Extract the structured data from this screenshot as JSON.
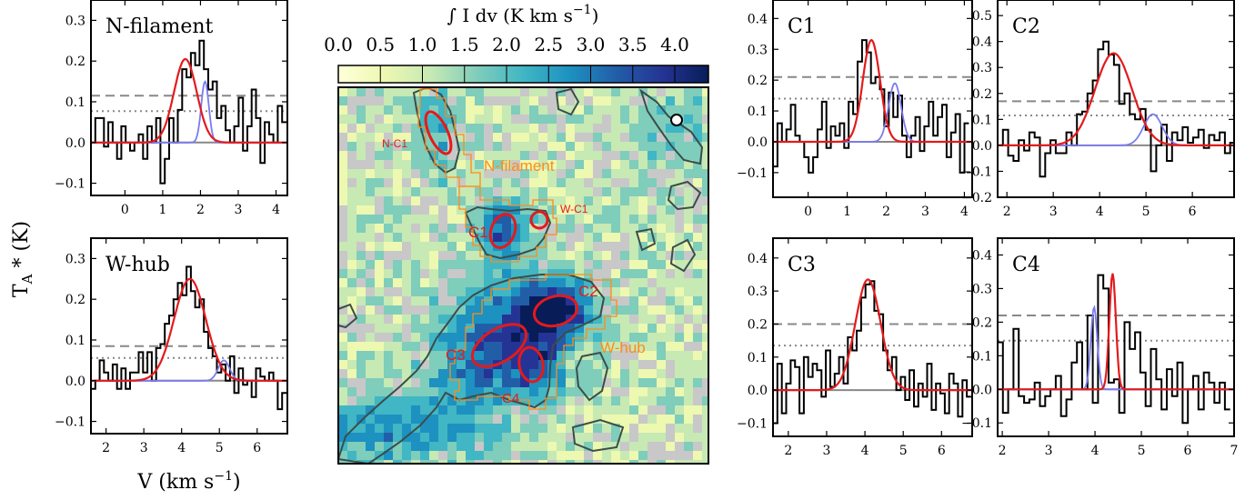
{
  "colors": {
    "spectrum": "#000000",
    "fit_main": "#e41a1c",
    "fit_secondary": "#7b7bf0",
    "baseline_zero": "#888888",
    "noise_3sigma": "#888888",
    "noise_2sigma": "#888888",
    "map_contour": "#3b4d4a",
    "map_mask": "#ff8c1a",
    "core_ellipse": "#e41a1c",
    "blank_pixels": "#c8c8c8"
  },
  "labels": {
    "ylabel": "T$_A$ * (K)",
    "xlabel": "V (km s$^{-1}$)",
    "colorbar_title": "∫ I dv (K km s$^{-1}$)"
  },
  "colorbar": {
    "ticks": [
      "0.0",
      "0.5",
      "1.0",
      "1.5",
      "2.0",
      "2.5",
      "3.0",
      "3.5",
      "4.0"
    ],
    "range": [
      0.0,
      4.4
    ],
    "colormap": "YlGnBu"
  },
  "map": {
    "region_labels": [
      "N-filament",
      "W-hub",
      "W-C1"
    ],
    "core_labels": [
      "N-C1",
      "C1",
      "C2",
      "C3",
      "C4"
    ],
    "beam_marker": "white-circle"
  },
  "chart_data": [
    {
      "type": "line",
      "panel": "N-filament",
      "title": "N-filament",
      "xlim": [
        -0.9,
        4.3
      ],
      "ylim": [
        -0.13,
        0.35
      ],
      "xticks": [
        0,
        1,
        2,
        3,
        4
      ],
      "yticks": [
        -0.1,
        0.0,
        0.1,
        0.2,
        0.3
      ],
      "x0": -0.9,
      "dx": 0.115,
      "values": [
        0.0,
        0.06,
        0.06,
        -0.01,
        0.05,
        0.0,
        -0.04,
        0.04,
        0.0,
        -0.02,
        0.0,
        0.02,
        -0.04,
        0.04,
        0.0,
        0.06,
        -0.1,
        -0.04,
        0.06,
        0.0,
        0.08,
        0.18,
        0.16,
        0.22,
        0.19,
        0.25,
        0.18,
        0.13,
        0.15,
        0.06,
        0.09,
        0.03,
        0.0,
        0.04,
        0.11,
        -0.02,
        0.04,
        0.13,
        0.06,
        -0.05,
        0.05,
        0.02,
        0.0,
        0.09,
        0.05
      ],
      "fit_main": {
        "amp": 0.205,
        "center": 1.6,
        "sigma": 0.3
      },
      "fit_secondary": {
        "amp": 0.15,
        "center": 2.12,
        "sigma": 0.1
      },
      "noise_3sigma": 0.115,
      "noise_2sigma": 0.077
    },
    {
      "type": "line",
      "panel": "W-hub",
      "title": "W-hub",
      "xlim": [
        1.6,
        6.8
      ],
      "ylim": [
        -0.13,
        0.35
      ],
      "xticks": [
        2,
        3,
        4,
        5,
        6
      ],
      "yticks": [
        -0.1,
        0.0,
        0.1,
        0.2,
        0.3
      ],
      "x0": 1.6,
      "dx": 0.115,
      "values": [
        -0.02,
        0.0,
        0.05,
        0.02,
        0.0,
        0.04,
        -0.02,
        0.03,
        -0.02,
        0.02,
        0.02,
        0.07,
        0.02,
        0.07,
        0.0,
        0.08,
        0.09,
        0.14,
        0.16,
        0.2,
        0.24,
        0.21,
        0.28,
        0.22,
        0.18,
        0.2,
        0.12,
        0.08,
        0.06,
        0.02,
        0.04,
        0.0,
        0.06,
        -0.03,
        0.03,
        -0.01,
        0.0,
        -0.04,
        0.03,
        0.01,
        0.0,
        0.02,
        0.0,
        -0.07,
        -0.03
      ],
      "fit_main": {
        "amp": 0.25,
        "center": 4.22,
        "sigma": 0.42
      },
      "fit_secondary": {
        "amp": 0.05,
        "center": 5.12,
        "sigma": 0.15
      },
      "noise_3sigma": 0.085,
      "noise_2sigma": 0.056
    },
    {
      "type": "line",
      "panel": "C1",
      "title": "C1",
      "xlim": [
        -0.9,
        4.2
      ],
      "ylim": [
        -0.18,
        0.46
      ],
      "xticks": [
        0,
        1,
        2,
        3,
        4
      ],
      "yticks": [
        -0.1,
        0.0,
        0.1,
        0.2,
        0.3,
        0.4
      ],
      "x0": -0.9,
      "dx": 0.114,
      "values": [
        -0.08,
        0.06,
        0.0,
        0.04,
        0.12,
        0.02,
        0.0,
        -0.05,
        -0.1,
        -0.05,
        0.04,
        0.13,
        -0.02,
        0.05,
        0.02,
        0.06,
        -0.02,
        0.13,
        0.09,
        0.26,
        0.33,
        0.29,
        0.19,
        0.21,
        0.17,
        0.05,
        0.16,
        0.08,
        0.15,
        0.02,
        -0.05,
        0.02,
        0.08,
        -0.03,
        0.05,
        0.13,
        0.02,
        0.08,
        0.12,
        -0.05,
        0.03,
        0.09,
        -0.1,
        0.06
      ],
      "fit_main": {
        "amp": 0.33,
        "center": 1.62,
        "sigma": 0.22
      },
      "fit_secondary": {
        "amp": 0.19,
        "center": 2.22,
        "sigma": 0.16
      },
      "noise_3sigma": 0.21,
      "noise_2sigma": 0.14
    },
    {
      "type": "line",
      "panel": "C2",
      "title": "C2",
      "xlim": [
        1.8,
        6.9
      ],
      "ylim": [
        -0.2,
        0.56
      ],
      "xticks": [
        2,
        3,
        4,
        5,
        6
      ],
      "yticks": [
        -0.2,
        -0.1,
        0.0,
        0.1,
        0.2,
        0.3,
        0.4,
        0.5
      ],
      "x0": 1.8,
      "dx": 0.114,
      "values": [
        0.0,
        0.06,
        -0.04,
        -0.06,
        0.02,
        -0.02,
        0.05,
        0.03,
        -0.12,
        -0.03,
        0.02,
        -0.03,
        -0.03,
        0.05,
        0.0,
        0.12,
        0.13,
        0.2,
        0.25,
        0.37,
        0.4,
        0.35,
        0.31,
        0.16,
        0.2,
        0.12,
        0.1,
        0.14,
        0.06,
        -0.1,
        0.0,
        0.08,
        -0.06,
        0.05,
        0.02,
        0.07,
        0.01,
        0.03,
        0.06,
        -0.01,
        0.04,
        0.02,
        0.05,
        -0.03,
        0.01
      ],
      "fit_main": {
        "amp": 0.355,
        "center": 4.3,
        "sigma": 0.4
      },
      "fit_secondary": {
        "amp": 0.12,
        "center": 5.15,
        "sigma": 0.2
      },
      "noise_3sigma": 0.17,
      "noise_2sigma": 0.115
    },
    {
      "type": "line",
      "panel": "C3",
      "title": "C3",
      "xlim": [
        1.6,
        6.8
      ],
      "ylim": [
        -0.14,
        0.46
      ],
      "xticks": [
        2,
        3,
        4,
        5,
        6
      ],
      "yticks": [
        -0.1,
        0.0,
        0.1,
        0.2,
        0.3,
        0.4
      ],
      "x0": 1.6,
      "dx": 0.115,
      "values": [
        -0.1,
        0.08,
        -0.07,
        0.02,
        0.09,
        0.07,
        -0.07,
        0.1,
        0.04,
        0.08,
        0.06,
        -0.02,
        0.12,
        0.01,
        0.05,
        0.1,
        0.02,
        0.16,
        0.12,
        0.18,
        0.28,
        0.32,
        0.33,
        0.24,
        0.23,
        0.12,
        0.06,
        0.1,
        0.0,
        0.04,
        -0.03,
        0.06,
        -0.05,
        0.02,
        -0.02,
        0.08,
        -0.06,
        0.02,
        -0.01,
        -0.07,
        0.05,
        0.02,
        -0.08,
        0.03,
        -0.02
      ],
      "fit_main": {
        "amp": 0.335,
        "center": 4.08,
        "sigma": 0.33
      },
      "fit_secondary": {
        "amp": 0.0,
        "center": 4.0,
        "sigma": 0.3
      },
      "noise_3sigma": 0.2,
      "noise_2sigma": 0.135
    },
    {
      "type": "line",
      "panel": "C4",
      "title": "C4",
      "xlim": [
        1.9,
        7.0
      ],
      "ylim": [
        -0.14,
        0.45
      ],
      "xticks": [
        2,
        3,
        4,
        5,
        6,
        7
      ],
      "yticks": [
        -0.1,
        0.0,
        0.1,
        0.2,
        0.3,
        0.4
      ],
      "x0": 1.9,
      "dx": 0.114,
      "values": [
        0.14,
        -0.07,
        0.0,
        0.18,
        -0.02,
        -0.04,
        -0.03,
        0.02,
        -0.05,
        -0.02,
        0.0,
        0.04,
        -0.08,
        -0.03,
        0.08,
        0.14,
        0.0,
        0.22,
        -0.04,
        0.34,
        0.3,
        0.02,
        0.03,
        -0.07,
        0.2,
        0.12,
        0.17,
        0.05,
        -0.05,
        0.12,
        0.03,
        -0.06,
        0.06,
        -0.02,
        0.08,
        -0.1,
        0.0,
        0.04,
        -0.06,
        0.05,
        0.02,
        -0.04,
        0.02,
        -0.06
      ],
      "fit_main": {
        "amp": 0.345,
        "center": 4.38,
        "sigma": 0.07
      },
      "fit_secondary": {
        "amp": 0.245,
        "center": 3.98,
        "sigma": 0.07
      },
      "noise_3sigma": 0.22,
      "noise_2sigma": 0.145
    }
  ]
}
